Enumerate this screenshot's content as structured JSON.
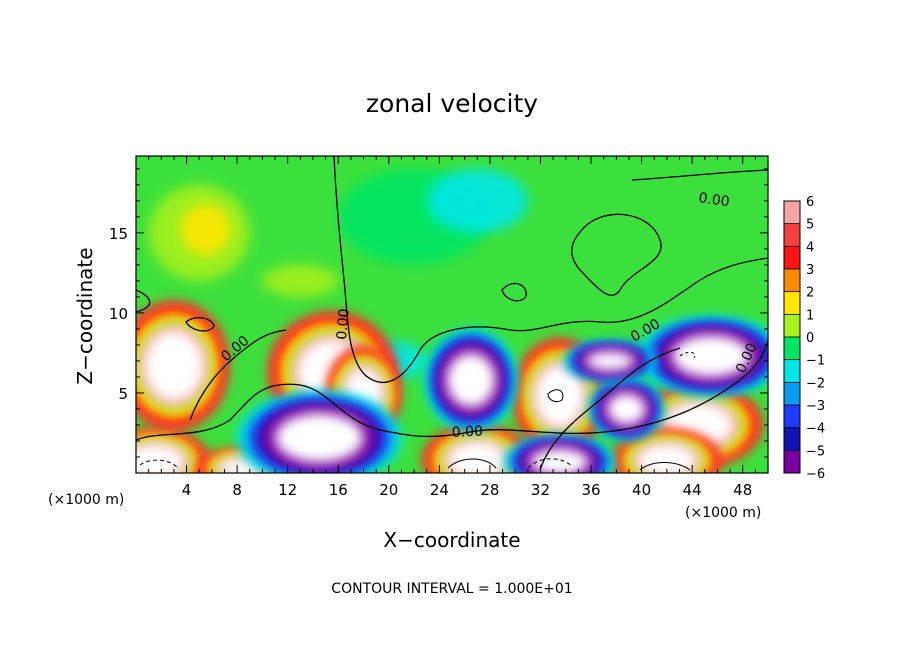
{
  "chart_data": {
    "type": "heatmap",
    "title": "zonal velocity",
    "xlabel": "X−coordinate",
    "ylabel": "Z−coordinate",
    "x_units": "(×1000 m)",
    "x_units_right": "(×1000 m)",
    "xlim": [
      0,
      50
    ],
    "ylim": [
      0,
      19.8
    ],
    "x_ticks": [
      4,
      8,
      12,
      16,
      20,
      24,
      28,
      32,
      36,
      40,
      44,
      48
    ],
    "x_tick_labels": [
      "4",
      "8",
      "12",
      "16",
      "20",
      "24",
      "28",
      "32",
      "36",
      "40",
      "44",
      "48"
    ],
    "y_ticks": [
      5,
      10,
      15
    ],
    "y_tick_labels": [
      "5",
      "10",
      "15"
    ],
    "footer": "CONTOUR INTERVAL = 1.000E+01",
    "contour_labels": [
      "0.00",
      "0.00",
      "0.00",
      "0.00",
      "0.00",
      "0.00"
    ],
    "colorbar": {
      "levels": [
        6,
        5,
        4,
        3,
        2,
        1,
        0,
        -1,
        -2,
        -3,
        -4,
        -5,
        -6
      ],
      "labels": [
        "6",
        "5",
        "4",
        "3",
        "2",
        "1",
        "0",
        "−1",
        "−2",
        "−3",
        "−4",
        "−5",
        "−6"
      ],
      "colors": [
        "#f5a3a3",
        "#f34040",
        "#ff1414",
        "#ff8c00",
        "#ffe600",
        "#a6f01c",
        "#37dc0a",
        "#00e664",
        "#00e6e6",
        "#0a9cf0",
        "#1e3cff",
        "#1414b4",
        "#7800a0"
      ]
    },
    "background_color": "#3ce03c",
    "features": [
      {
        "kind": "fill",
        "level": 1,
        "x": 5,
        "z": 15,
        "rx": 4,
        "rz": 3
      },
      {
        "kind": "fill",
        "level": 2,
        "x": 5.5,
        "z": 15.2,
        "rx": 2,
        "rz": 1.6
      },
      {
        "kind": "fill",
        "level": -1,
        "x": 22,
        "z": 16,
        "rx": 6,
        "rz": 3
      },
      {
        "kind": "fill",
        "level": -2,
        "x": 27,
        "z": 17,
        "rx": 4,
        "rz": 2
      },
      {
        "kind": "fill",
        "level": -2,
        "x": 20.5,
        "z": 7,
        "rx": 2.5,
        "rz": 1.2
      },
      {
        "kind": "fill",
        "level": 1,
        "x": 13,
        "z": 12,
        "rx": 3,
        "rz": 1
      },
      {
        "kind": "blob",
        "sign": 1,
        "x": 3,
        "z": 6.7,
        "rx": 3,
        "rz": 2.8
      },
      {
        "kind": "blob",
        "sign": 1,
        "x": 15.5,
        "z": 6.3,
        "rx": 3.5,
        "rz": 2.6
      },
      {
        "kind": "blob",
        "sign": 1,
        "x": 18,
        "z": 5,
        "rx": 2,
        "rz": 2
      },
      {
        "kind": "blob",
        "sign": 1,
        "x": 33.5,
        "z": 4.8,
        "rx": 2.5,
        "rz": 2.5
      },
      {
        "kind": "blob",
        "sign": 1,
        "x": 44.5,
        "z": 3,
        "rx": 3.5,
        "rz": 1.8
      },
      {
        "kind": "blob",
        "sign": 1,
        "x": 1.5,
        "z": 0.7,
        "rx": 3,
        "rz": 1.4
      },
      {
        "kind": "blob",
        "sign": 1,
        "x": 8.5,
        "z": 0.3,
        "rx": 2.5,
        "rz": 0.8
      },
      {
        "kind": "blob",
        "sign": 1,
        "x": 27,
        "z": 0.8,
        "rx": 3,
        "rz": 1.5
      },
      {
        "kind": "blob",
        "sign": 1,
        "x": 42,
        "z": 0.8,
        "rx": 3,
        "rz": 1.3
      },
      {
        "kind": "blob",
        "sign": -1,
        "x": 14.5,
        "z": 2.2,
        "rx": 4.5,
        "rz": 2
      },
      {
        "kind": "blob",
        "sign": -1,
        "x": 26.5,
        "z": 5.8,
        "rx": 2.5,
        "rz": 2.2
      },
      {
        "kind": "blob",
        "sign": -1,
        "x": 45.5,
        "z": 7.3,
        "rx": 4,
        "rz": 1.7
      },
      {
        "kind": "blob",
        "sign": -1,
        "x": 38.8,
        "z": 4,
        "rx": 2,
        "rz": 1.3
      },
      {
        "kind": "blob",
        "sign": -1,
        "x": 33.5,
        "z": 0.7,
        "rx": 3,
        "rz": 1.1
      },
      {
        "kind": "blob",
        "sign": -1,
        "x": 37.5,
        "z": 7,
        "rx": 2.5,
        "rz": 0.8
      }
    ]
  }
}
